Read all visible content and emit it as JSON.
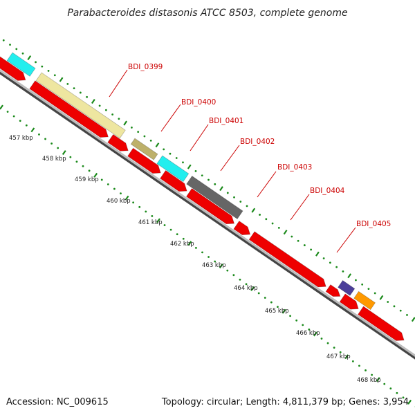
{
  "title": "Parabacteroides distasonis ATCC 8503, complete genome",
  "footer": {
    "accession": "Accession: NC_009615",
    "summary": "Topology: circular; Length: 4,811,379 bp; Genes: 3,954"
  },
  "gene_labels": [
    "BDI_0399",
    "BDI_0400",
    "BDI_0401",
    "BDI_0402",
    "BDI_0403",
    "BDI_0404",
    "BDI_0405"
  ],
  "ruler_labels": [
    "457 kbp",
    "458 kbp",
    "459 kbp",
    "460 kbp",
    "461 kbp",
    "462 kbp",
    "463 kbp",
    "464 kbp",
    "465 kbp",
    "466 kbp",
    "467 kbp",
    "468 kbp"
  ],
  "colors": {
    "cds": "#ee0000",
    "cyan": "#22eeee",
    "khaki": "#eee6a0",
    "olive": "#bdb06a",
    "gray": "#666666",
    "navy": "#4b3f99",
    "orange": "#ff9900",
    "backbone": "#888888",
    "ruler_green": "#1b8a1b",
    "label_red": "#cc0000"
  }
}
